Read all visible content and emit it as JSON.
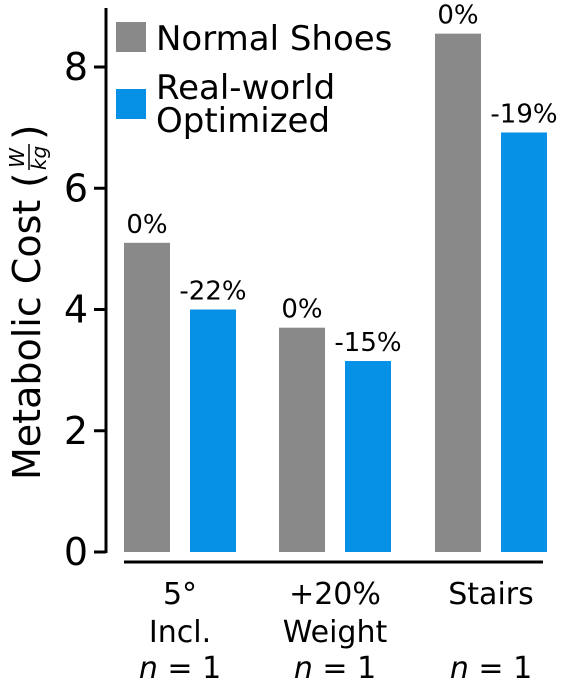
{
  "chart_data": {
    "type": "bar",
    "categories": [
      {
        "line1": "5°",
        "line2": "Incl.",
        "n_var": "n",
        "n_rest": " = 1"
      },
      {
        "line1": "+20%",
        "line2": "Weight",
        "n_var": "n",
        "n_rest": " = 1"
      },
      {
        "line1": "Stairs",
        "line2": "",
        "n_var": "n",
        "n_rest": " = 1"
      }
    ],
    "series": [
      {
        "name": "Normal Shoes",
        "color": "#898989",
        "values": [
          5.1,
          3.7,
          8.55
        ],
        "labels": [
          "0%",
          "0%",
          "0%"
        ]
      },
      {
        "name": "Real-world Optimized",
        "name_lines": [
          "Real-world",
          "Optimized"
        ],
        "color": "#0690e6",
        "values": [
          4.0,
          3.15,
          6.92
        ],
        "labels": [
          "-22%",
          "-15%",
          "-19%"
        ]
      }
    ],
    "ylabel": {
      "text": "Metabolic Cost",
      "unit_numerator": "W",
      "unit_denominator": "kg",
      "paren_open": "(",
      "paren_close": ")"
    },
    "ylim": [
      0,
      9
    ],
    "yticks": [
      0,
      2,
      4,
      6,
      8
    ],
    "legend": {
      "position": "top-left"
    },
    "grid": false
  }
}
